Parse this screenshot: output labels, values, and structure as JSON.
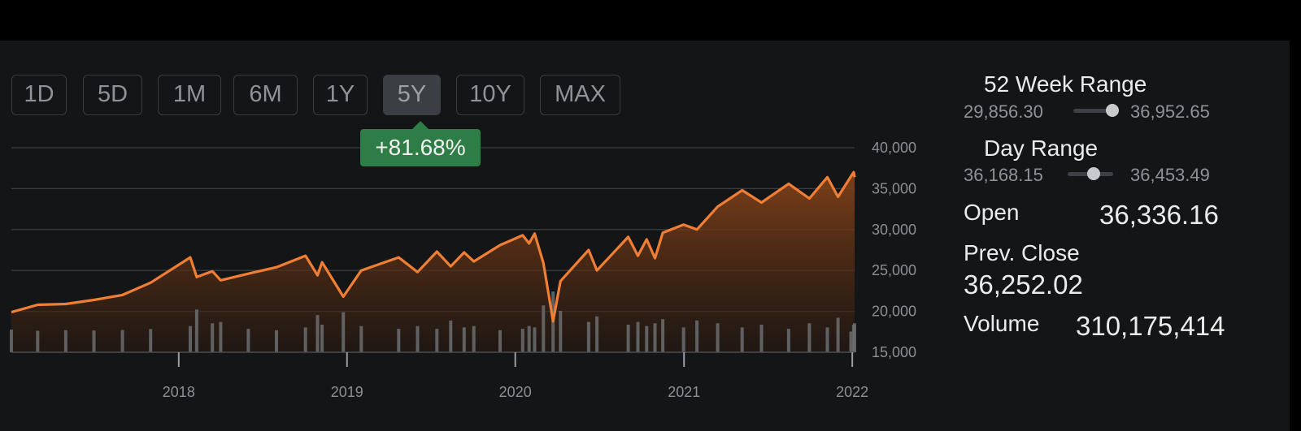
{
  "range_buttons": [
    {
      "label": "1D",
      "active": false
    },
    {
      "label": "5D",
      "active": false
    },
    {
      "label": "1M",
      "active": false
    },
    {
      "label": "6M",
      "active": false
    },
    {
      "label": "1Y",
      "active": false
    },
    {
      "label": "5Y",
      "active": true
    },
    {
      "label": "10Y",
      "active": false
    },
    {
      "label": "MAX",
      "active": false
    }
  ],
  "change_badge": "+81.68%",
  "colors": {
    "line": "#f07e35",
    "area_top": "#8a4519",
    "volume": "#6b6d70",
    "badge": "#2f7d46",
    "grid": "#3a3d41"
  },
  "stats": {
    "week52": {
      "title": "52 Week Range",
      "low": "29,856.30",
      "high": "36,952.65",
      "position": 0.86
    },
    "day": {
      "title": "Day Range",
      "low": "36,168.15",
      "high": "36,453.49",
      "position": 0.58
    },
    "open": {
      "label": "Open",
      "value": "36,336.16"
    },
    "prev_close": {
      "label": "Prev. Close",
      "value": "36,252.02"
    },
    "volume": {
      "label": "Volume",
      "value": "310,175,414"
    }
  },
  "chart_data": {
    "type": "area",
    "y_ticks": [
      "40,000",
      "35,000",
      "30,000",
      "25,000",
      "20,000",
      "15,000"
    ],
    "y_tick_values": [
      40000,
      35000,
      30000,
      25000,
      20000,
      15000
    ],
    "ylim": [
      15000,
      40000
    ],
    "x_ticks": [
      "2018",
      "2019",
      "2020",
      "2021",
      "2022"
    ],
    "x_tick_values": [
      "2018-01-01",
      "2019-01-01",
      "2020-01-01",
      "2021-01-01",
      "2022-01-01"
    ],
    "xlim": [
      "2017-01-03",
      "2022-01-06"
    ],
    "grid": true,
    "series": [
      {
        "x": [
          "2017-01-03",
          "2017-03-01",
          "2017-05-01",
          "2017-07-01",
          "2017-09-01",
          "2017-11-01",
          "2018-01-26",
          "2018-02-09",
          "2018-03-15",
          "2018-04-02",
          "2018-06-01",
          "2018-08-01",
          "2018-10-03",
          "2018-10-29",
          "2018-11-08",
          "2018-12-24",
          "2019-02-01",
          "2019-04-23",
          "2019-06-03",
          "2019-07-15",
          "2019-08-14",
          "2019-09-12",
          "2019-10-03",
          "2019-11-29",
          "2020-01-17",
          "2020-01-31",
          "2020-02-12",
          "2020-03-02",
          "2020-03-23",
          "2020-04-08",
          "2020-06-08",
          "2020-06-26",
          "2020-09-02",
          "2020-09-23",
          "2020-10-12",
          "2020-10-30",
          "2020-11-16",
          "2020-12-31",
          "2021-01-29",
          "2021-03-15",
          "2021-05-07",
          "2021-06-18",
          "2021-08-16",
          "2021-09-30",
          "2021-11-08",
          "2021-12-01",
          "2021-12-29",
          "2022-01-04",
          "2022-01-06"
        ],
        "y": [
          19900,
          20800,
          20900,
          21400,
          22000,
          23500,
          26600,
          24200,
          24900,
          23800,
          24600,
          25400,
          26800,
          24400,
          26000,
          21800,
          25000,
          26600,
          24800,
          27300,
          25500,
          27200,
          26100,
          28100,
          29300,
          28300,
          29500,
          25900,
          18800,
          23700,
          27500,
          25000,
          29100,
          26800,
          28800,
          26500,
          29600,
          30600,
          30000,
          32800,
          34800,
          33300,
          35600,
          33800,
          36400,
          34000,
          36500,
          37000,
          36400
        ],
        "volume": [
          0.82,
          0.78,
          0.8,
          0.79,
          0.81,
          0.84,
          0.95,
          1.55,
          1.05,
          1.1,
          0.85,
          0.8,
          0.9,
          1.35,
          1.0,
          1.45,
          0.95,
          0.85,
          0.95,
          0.85,
          1.15,
          0.9,
          0.95,
          0.8,
          0.85,
          0.95,
          0.9,
          1.7,
          2.2,
          1.5,
          1.1,
          1.3,
          1.0,
          1.1,
          0.95,
          1.05,
          1.2,
          0.9,
          1.15,
          1.05,
          0.9,
          1.0,
          0.85,
          1.05,
          0.9,
          1.25,
          0.75,
          1.0,
          1.05
        ]
      }
    ]
  }
}
